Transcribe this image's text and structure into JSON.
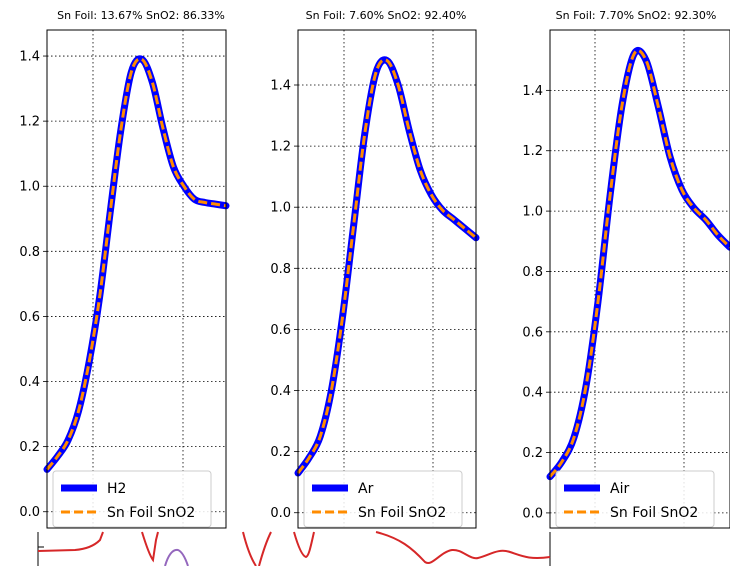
{
  "chart_data": [
    {
      "type": "line",
      "title": "Sn Foil: 13.67% SnO2: 86.33%",
      "xlabel": "",
      "ylabel": "",
      "ylim": [
        -0.05,
        1.48
      ],
      "yticks": [
        "0.0",
        "0.2",
        "0.4",
        "0.6",
        "0.8",
        "1.0",
        "1.2",
        "1.4"
      ],
      "grid": true,
      "legend_location": "lower-left",
      "series": [
        {
          "name": "H2",
          "color": "#0000ff",
          "style": "solid",
          "y": [
            0.13,
            0.17,
            0.22,
            0.31,
            0.46,
            0.66,
            0.92,
            1.17,
            1.35,
            1.39,
            1.32,
            1.18,
            1.06,
            1.0,
            0.96,
            0.95,
            0.945,
            0.94
          ]
        },
        {
          "name": "Sn Foil SnO2",
          "color": "#ff8c00",
          "style": "dashed",
          "y": [
            0.13,
            0.17,
            0.22,
            0.31,
            0.46,
            0.66,
            0.92,
            1.17,
            1.35,
            1.39,
            1.32,
            1.18,
            1.06,
            1.0,
            0.96,
            0.95,
            0.945,
            0.94
          ]
        }
      ]
    },
    {
      "type": "line",
      "title": "Sn Foil: 7.60% SnO2: 92.40%",
      "xlabel": "",
      "ylabel": "",
      "ylim": [
        -0.05,
        1.58
      ],
      "yticks": [
        "0.0",
        "0.2",
        "0.4",
        "0.6",
        "0.8",
        "1.0",
        "1.2",
        "1.4"
      ],
      "grid": true,
      "legend_location": "lower-left",
      "series": [
        {
          "name": "Ar",
          "color": "#0000ff",
          "style": "solid",
          "y": [
            0.13,
            0.18,
            0.25,
            0.4,
            0.64,
            0.94,
            1.24,
            1.44,
            1.48,
            1.4,
            1.25,
            1.12,
            1.04,
            0.99,
            0.96,
            0.93,
            0.9
          ]
        },
        {
          "name": "Sn Foil SnO2",
          "color": "#ff8c00",
          "style": "dashed",
          "y": [
            0.13,
            0.18,
            0.25,
            0.4,
            0.64,
            0.94,
            1.24,
            1.44,
            1.48,
            1.4,
            1.25,
            1.12,
            1.04,
            0.99,
            0.96,
            0.93,
            0.9
          ]
        }
      ]
    },
    {
      "type": "line",
      "title": "Sn Foil: 7.70% SnO2: 92.30%",
      "xlabel": "",
      "ylabel": "",
      "ylim": [
        -0.05,
        1.6
      ],
      "yticks": [
        "0.0",
        "0.2",
        "0.4",
        "0.6",
        "0.8",
        "1.0",
        "1.2",
        "1.4"
      ],
      "grid": true,
      "legend_location": "lower-left",
      "series": [
        {
          "name": "Air",
          "color": "#0000ff",
          "style": "solid",
          "y": [
            0.12,
            0.17,
            0.25,
            0.42,
            0.7,
            1.05,
            1.35,
            1.52,
            1.5,
            1.35,
            1.18,
            1.07,
            1.01,
            0.97,
            0.92,
            0.88
          ]
        },
        {
          "name": "Sn Foil SnO2",
          "color": "#ff8c00",
          "style": "dashed",
          "y": [
            0.12,
            0.17,
            0.25,
            0.42,
            0.7,
            1.05,
            1.35,
            1.52,
            1.5,
            1.35,
            1.18,
            1.07,
            1.01,
            0.97,
            0.92,
            0.88
          ]
        }
      ]
    }
  ],
  "bottom_strip": {
    "colors": [
      "#d62728",
      "#9467bd"
    ]
  }
}
